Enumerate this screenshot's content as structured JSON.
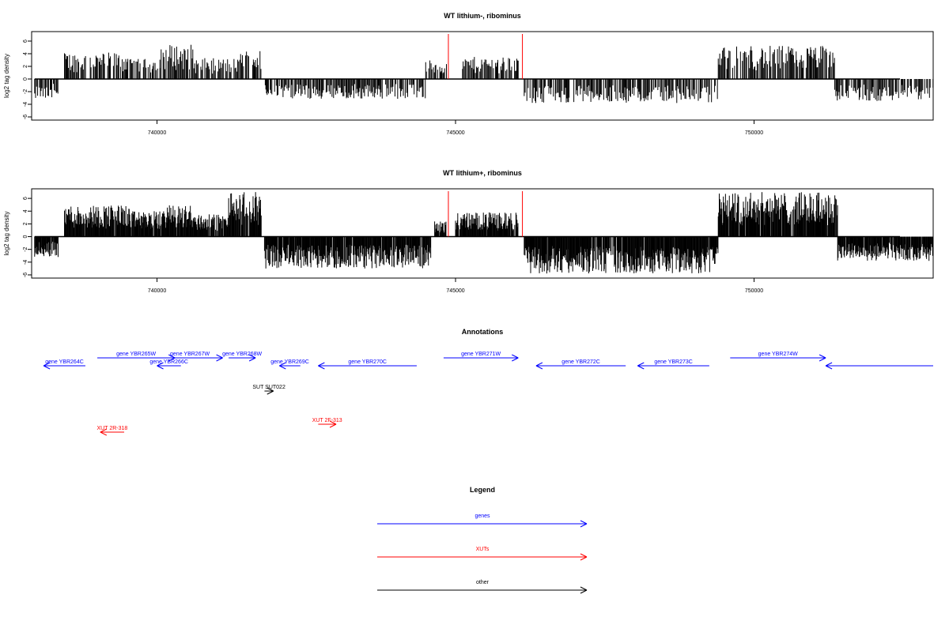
{
  "chart_data": [
    {
      "type": "bar",
      "title": "WT lithium-, ribominus",
      "ylabel": "log2 tag density",
      "xlim": [
        737900,
        753000
      ],
      "ylim": [
        -6.5,
        7.5
      ],
      "xticks": [
        740000,
        745000,
        750000
      ],
      "yticks": [
        6,
        4,
        2,
        0,
        -2,
        -4,
        -6
      ],
      "markers": [
        {
          "x": 744880,
          "color": "#ff0000"
        },
        {
          "x": 746120,
          "color": "#ff0000"
        }
      ],
      "series": [
        {
          "kind": "density-bars",
          "density": "medium",
          "regions": [
            {
              "start": 737950,
              "end": 738350,
              "sign": -1,
              "max": 3.0
            },
            {
              "start": 738450,
              "end": 739500,
              "sign": 1,
              "max": 4.2
            },
            {
              "start": 739500,
              "end": 740050,
              "sign": 1,
              "max": 3.2
            },
            {
              "start": 740050,
              "end": 740600,
              "sign": 1,
              "max": 5.5
            },
            {
              "start": 740600,
              "end": 741400,
              "sign": 1,
              "max": 3.3
            },
            {
              "start": 741400,
              "end": 741750,
              "sign": 1,
              "max": 4.6
            },
            {
              "start": 741800,
              "end": 744500,
              "sign": -1,
              "max": 3.2
            },
            {
              "start": 744500,
              "end": 744850,
              "sign": 1,
              "max": 3.0
            },
            {
              "start": 745100,
              "end": 746050,
              "sign": 1,
              "max": 3.5
            },
            {
              "start": 746150,
              "end": 749400,
              "sign": -1,
              "max": 3.8
            },
            {
              "start": 749400,
              "end": 751350,
              "sign": 1,
              "max": 5.3
            },
            {
              "start": 751350,
              "end": 753000,
              "sign": -1,
              "max": 3.5
            }
          ]
        }
      ]
    },
    {
      "type": "bar",
      "title": "WT lithium+, ribominus",
      "ylabel": "log2 tag density",
      "xlim": [
        737900,
        753000
      ],
      "ylim": [
        -6.5,
        7.5
      ],
      "xticks": [
        740000,
        745000,
        750000
      ],
      "yticks": [
        6,
        4,
        2,
        0,
        -2,
        -4,
        -6
      ],
      "markers": [
        {
          "x": 744880,
          "color": "#ff0000"
        },
        {
          "x": 746120,
          "color": "#ff0000"
        }
      ],
      "series": [
        {
          "kind": "density-bars",
          "density": "high",
          "regions": [
            {
              "start": 737950,
              "end": 738350,
              "sign": -1,
              "max": 3.2
            },
            {
              "start": 738450,
              "end": 739550,
              "sign": 1,
              "max": 5.0
            },
            {
              "start": 739550,
              "end": 740100,
              "sign": 1,
              "max": 4.0
            },
            {
              "start": 740100,
              "end": 740600,
              "sign": 1,
              "max": 5.0
            },
            {
              "start": 740600,
              "end": 741200,
              "sign": 1,
              "max": 3.5
            },
            {
              "start": 741200,
              "end": 741750,
              "sign": 1,
              "max": 7.0
            },
            {
              "start": 741800,
              "end": 744600,
              "sign": -1,
              "max": 5.0
            },
            {
              "start": 744650,
              "end": 744850,
              "sign": 1,
              "max": 2.4
            },
            {
              "start": 745000,
              "end": 746050,
              "sign": 1,
              "max": 3.8
            },
            {
              "start": 746150,
              "end": 749400,
              "sign": -1,
              "max": 5.8
            },
            {
              "start": 749400,
              "end": 751400,
              "sign": 1,
              "max": 7.0
            },
            {
              "start": 751400,
              "end": 753000,
              "sign": -1,
              "max": 3.8
            }
          ]
        }
      ]
    }
  ],
  "annotations": {
    "title": "Annotations",
    "xlim": [
      737900,
      753000
    ],
    "features": [
      {
        "label": "gene YBR264C",
        "start": 738100,
        "end": 738800,
        "strand": "-",
        "row": 0,
        "color": "#0000ff"
      },
      {
        "label": "gene YBR265W",
        "start": 739000,
        "end": 740300,
        "strand": "+",
        "row": 1,
        "color": "#0000ff"
      },
      {
        "label": "gene YBR266C",
        "start": 740000,
        "end": 740400,
        "strand": "-",
        "row": 0,
        "color": "#0000ff"
      },
      {
        "label": "gene YBR267W",
        "start": 740000,
        "end": 741100,
        "strand": "+",
        "row": 1,
        "color": "#0000ff"
      },
      {
        "label": "gene YBR268W",
        "start": 741200,
        "end": 741650,
        "strand": "+",
        "row": 1,
        "color": "#0000ff"
      },
      {
        "label": "gene YBR269C",
        "start": 742050,
        "end": 742400,
        "strand": "-",
        "row": 0,
        "color": "#0000ff"
      },
      {
        "label": "gene YBR270C",
        "start": 742700,
        "end": 744350,
        "strand": "-",
        "row": 0,
        "color": "#0000ff"
      },
      {
        "label": "gene YBR271W",
        "start": 744800,
        "end": 746050,
        "strand": "+",
        "row": 1,
        "color": "#0000ff"
      },
      {
        "label": "gene YBR272C",
        "start": 746350,
        "end": 747850,
        "strand": "-",
        "row": 0,
        "color": "#0000ff"
      },
      {
        "label": "gene YBR273C",
        "start": 748050,
        "end": 749250,
        "strand": "-",
        "row": 0,
        "color": "#0000ff"
      },
      {
        "label": "gene YBR274W",
        "start": 749600,
        "end": 751200,
        "strand": "+",
        "row": 1,
        "color": "#0000ff"
      },
      {
        "label": "",
        "start": 751200,
        "end": 753000,
        "strand": "-",
        "row": 0,
        "color": "#0000ff"
      },
      {
        "label": "SUT SUT022",
        "start": 741800,
        "end": 741950,
        "strand": "+",
        "row": 2,
        "color": "#000000"
      },
      {
        "label": "XUT 2F-313",
        "start": 742700,
        "end": 743000,
        "strand": "+",
        "row": 3,
        "color": "#ff0000"
      },
      {
        "label": "XUT 2R-318",
        "start": 739050,
        "end": 739450,
        "strand": "-",
        "row": 4,
        "color": "#ff0000"
      }
    ]
  },
  "legend": {
    "title": "Legend",
    "items": [
      {
        "label": "genes",
        "color": "#0000ff"
      },
      {
        "label": "XUTs",
        "color": "#ff0000"
      },
      {
        "label": "other",
        "color": "#000000"
      }
    ]
  }
}
